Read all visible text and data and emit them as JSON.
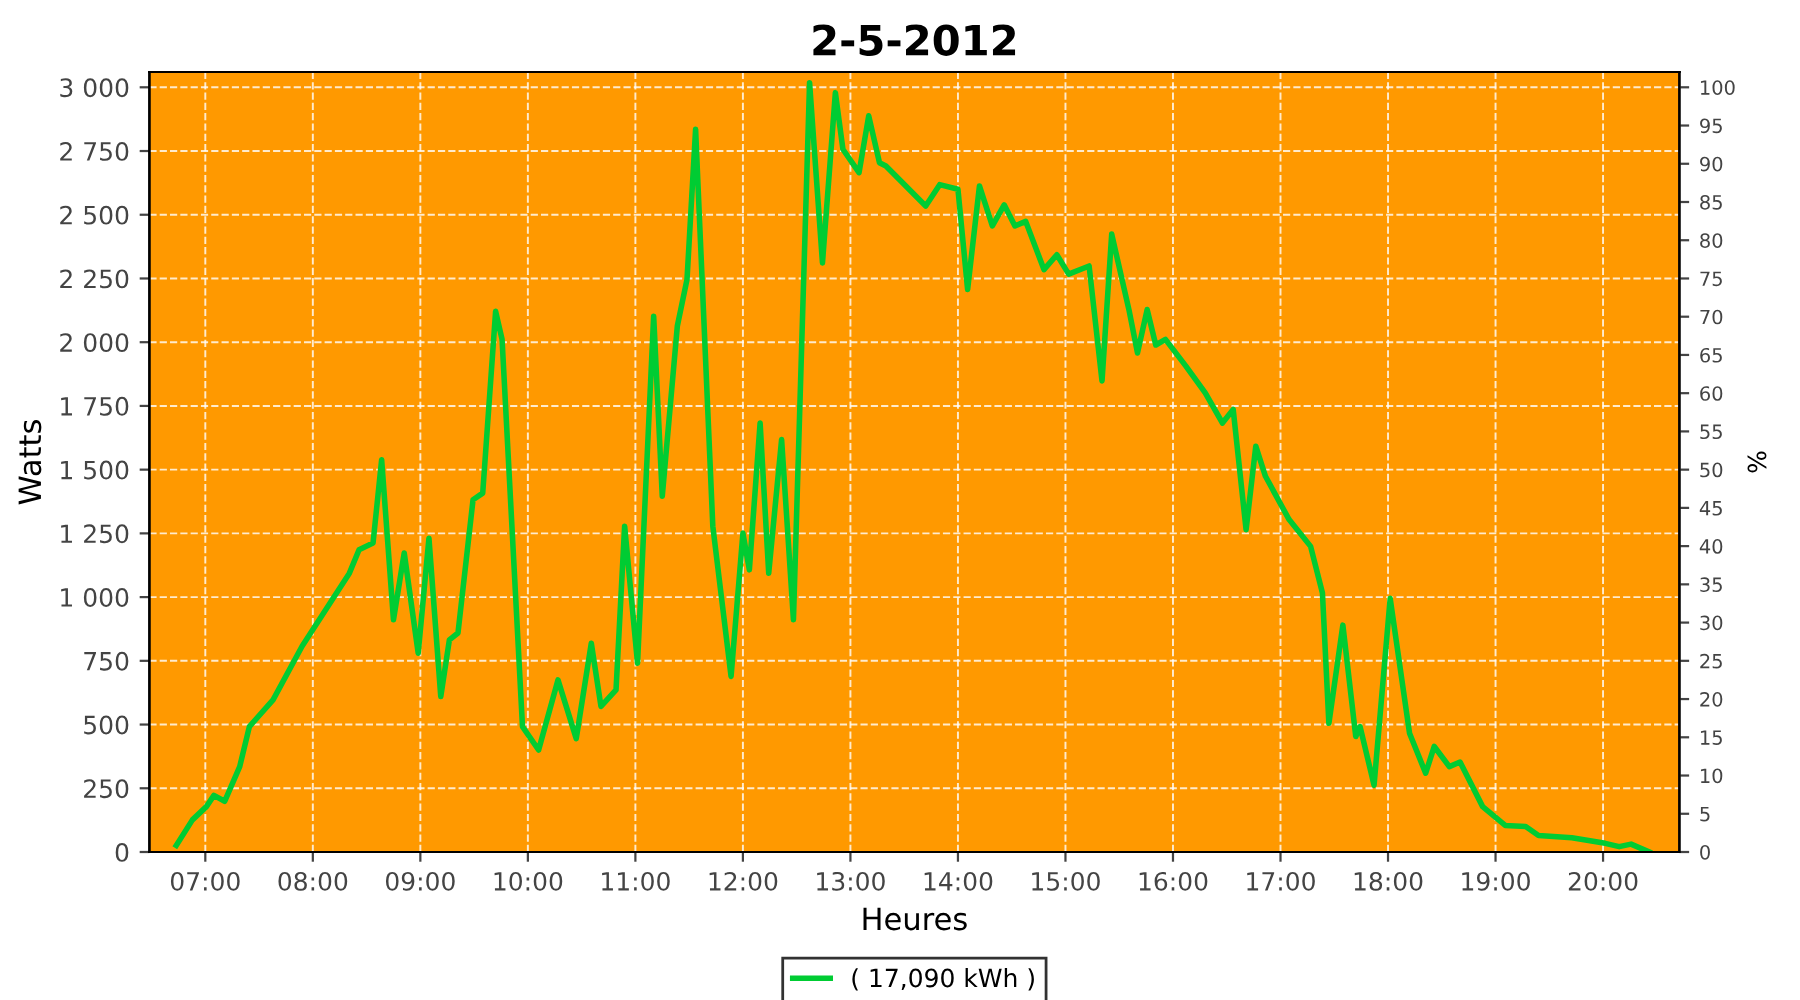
{
  "chart_data": {
    "type": "line",
    "title": "2-5-2012",
    "xlabel": "Heures",
    "ylabel": "Watts",
    "y2label": "%",
    "series": [
      {
        "name": "( 17,090 kWh )",
        "color": "#00cc33",
        "x": [
          6.73,
          6.88,
          7.01,
          7.08,
          7.18,
          7.32,
          7.41,
          7.63,
          7.9,
          8.18,
          8.34,
          8.43,
          8.56,
          8.64,
          8.75,
          8.85,
          8.98,
          9.08,
          9.19,
          9.27,
          9.35,
          9.49,
          9.58,
          9.7,
          9.76,
          9.95,
          10.1,
          10.28,
          10.45,
          10.59,
          10.68,
          10.82,
          10.9,
          11.02,
          11.17,
          11.25,
          11.39,
          11.48,
          11.56,
          11.72,
          11.89,
          12.0,
          12.06,
          12.16,
          12.24,
          12.36,
          12.47,
          12.62,
          12.74,
          12.86,
          12.93,
          13.08,
          13.17,
          13.27,
          13.33,
          13.7,
          13.83,
          14.0,
          14.09,
          14.2,
          14.32,
          14.43,
          14.53,
          14.63,
          14.8,
          14.92,
          15.03,
          15.22,
          15.34,
          15.43,
          15.59,
          15.67,
          15.76,
          15.84,
          15.93,
          16.12,
          16.3,
          16.46,
          16.56,
          16.68,
          16.77,
          16.86,
          17.08,
          17.28,
          17.39,
          17.45,
          17.58,
          17.7,
          17.74,
          17.87,
          18.02,
          18.2,
          18.35,
          18.43,
          18.57,
          18.67,
          18.88,
          19.09,
          19.28,
          19.4,
          19.71,
          20.02,
          20.15,
          20.26,
          20.43
        ],
        "values": [
          26,
          126,
          178,
          222,
          199,
          335,
          492,
          597,
          807,
          990,
          1094,
          1186,
          1212,
          1539,
          911,
          1173,
          780,
          1231,
          610,
          832,
          859,
          1382,
          1408,
          2121,
          2011,
          492,
          400,
          675,
          445,
          819,
          571,
          636,
          1278,
          741,
          2102,
          1396,
          2063,
          2246,
          2835,
          1278,
          689,
          1251,
          1107,
          1683,
          1094,
          1618,
          911,
          3018,
          2311,
          2979,
          2757,
          2665,
          2888,
          2704,
          2691,
          2534,
          2618,
          2600,
          2207,
          2613,
          2456,
          2539,
          2456,
          2474,
          2285,
          2343,
          2267,
          2299,
          1848,
          2424,
          2128,
          1958,
          2128,
          1989,
          2011,
          1906,
          1801,
          1683,
          1736,
          1264,
          1592,
          1474,
          1304,
          1199,
          1016,
          505,
          890,
          453,
          492,
          262,
          995,
          466,
          309,
          414,
          335,
          353,
          178,
          104,
          100,
          65,
          56,
          34,
          21,
          31,
          0
        ]
      }
    ],
    "xlim": [
      6.48,
      20.71
    ],
    "xticks": [
      {
        "value": 7,
        "label": "07:00"
      },
      {
        "value": 8,
        "label": "08:00"
      },
      {
        "value": 9,
        "label": "09:00"
      },
      {
        "value": 10,
        "label": "10:00"
      },
      {
        "value": 11,
        "label": "11:00"
      },
      {
        "value": 12,
        "label": "12:00"
      },
      {
        "value": 13,
        "label": "13:00"
      },
      {
        "value": 14,
        "label": "14:00"
      },
      {
        "value": 15,
        "label": "15:00"
      },
      {
        "value": 16,
        "label": "16:00"
      },
      {
        "value": 17,
        "label": "17:00"
      },
      {
        "value": 18,
        "label": "18:00"
      },
      {
        "value": 19,
        "label": "19:00"
      },
      {
        "value": 20,
        "label": "20:00"
      }
    ],
    "ylim": [
      0,
      3060
    ],
    "yticks": [
      0,
      250,
      500,
      750,
      {
        "value": 1000,
        "label": "1 000"
      },
      {
        "value": 1250,
        "label": "1 250"
      },
      {
        "value": 1500,
        "label": "1 500"
      },
      {
        "value": 1750,
        "label": "1 750"
      },
      {
        "value": 2000,
        "label": "2 000"
      },
      {
        "value": 2250,
        "label": "2 250"
      },
      {
        "value": 2500,
        "label": "2 500"
      },
      {
        "value": 2750,
        "label": "2 750"
      },
      {
        "value": 3000,
        "label": "3 000"
      }
    ],
    "y2lim": [
      0,
      102
    ],
    "y2ticks": [
      0,
      5,
      10,
      15,
      20,
      25,
      30,
      35,
      40,
      45,
      50,
      55,
      60,
      65,
      70,
      75,
      80,
      85,
      90,
      95,
      100
    ],
    "grid": true,
    "legend": "bottom",
    "marker": "none",
    "line_style": "solid"
  }
}
